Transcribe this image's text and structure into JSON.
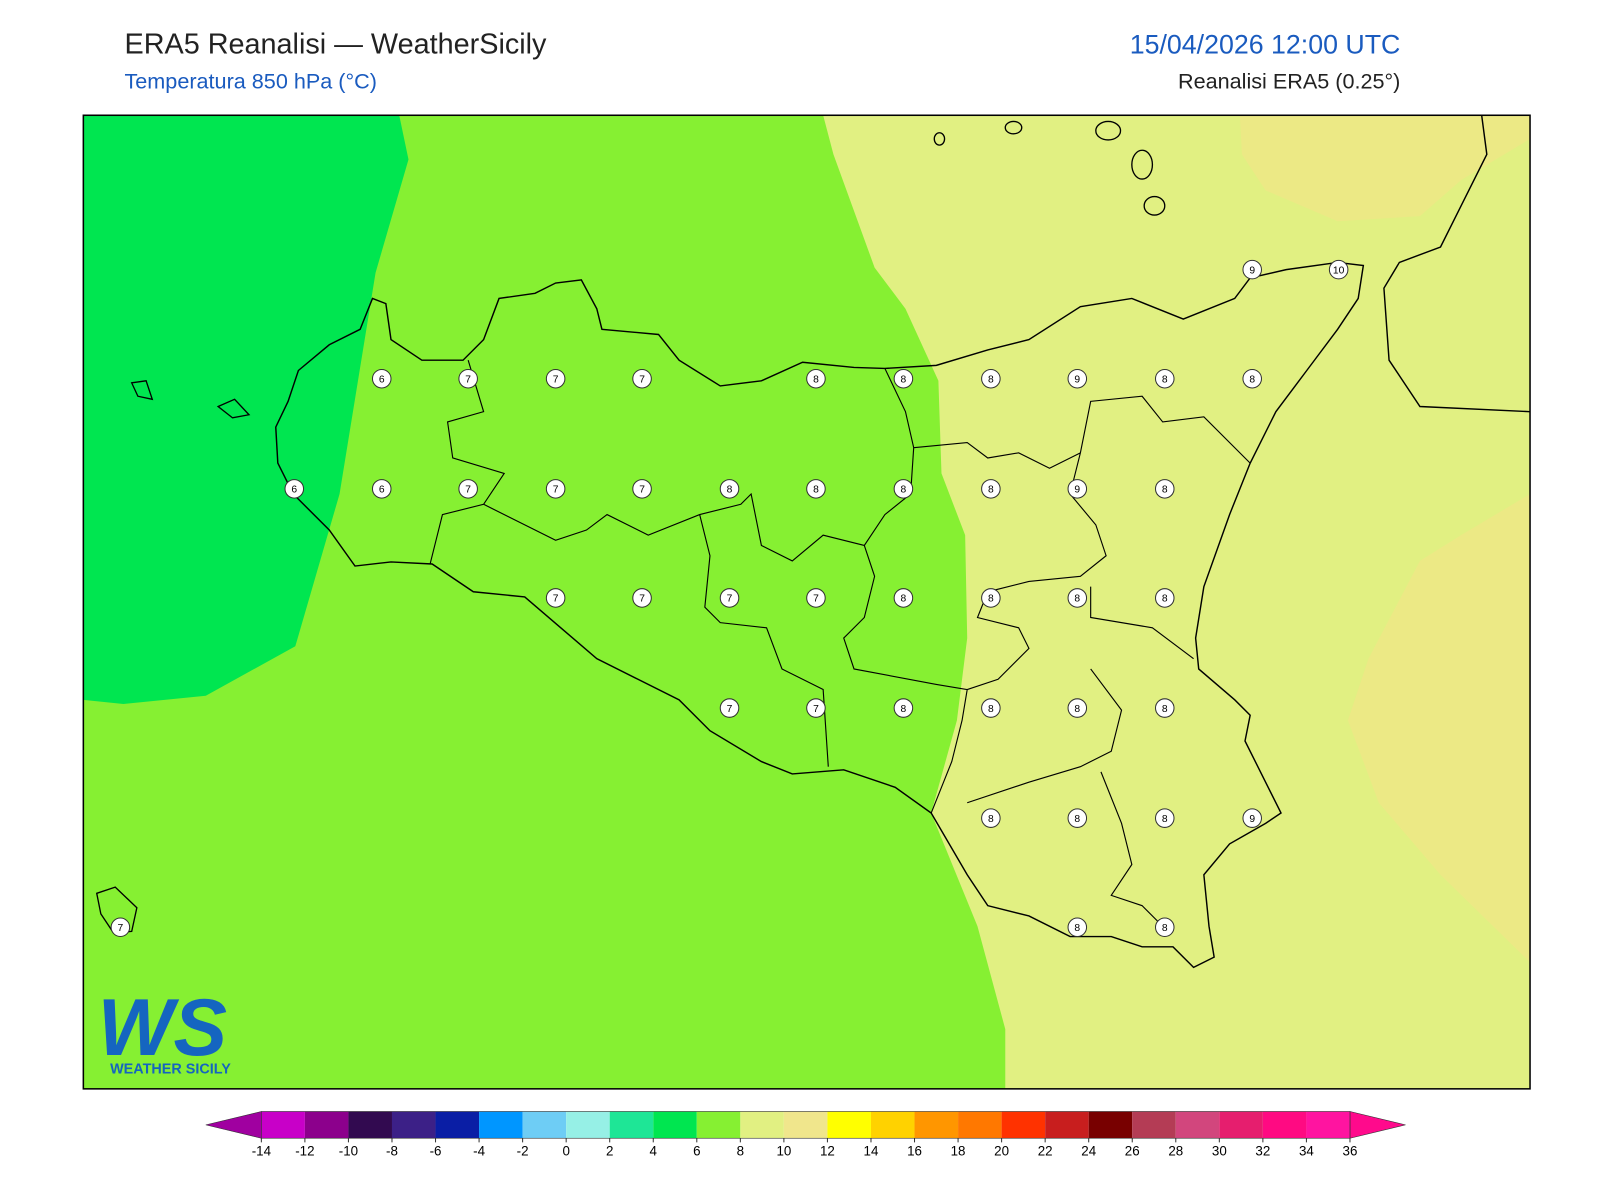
{
  "header": {
    "title": "ERA5 Reanalisi — WeatherSicily",
    "subtitle": "Temperatura 850 hPa (°C)",
    "datetime": "15/04/2026 12:00 UTC",
    "source": "Reanalisi ERA5 (0.25°)"
  },
  "map": {
    "points": [
      6,
      7,
      7,
      7,
      8,
      8,
      8,
      9,
      8,
      8,
      6,
      6,
      7,
      7,
      7,
      8,
      8,
      8,
      8,
      9,
      8,
      7,
      7,
      7,
      7,
      8,
      8,
      8,
      8,
      7,
      7,
      8,
      8,
      8,
      8,
      8,
      8,
      8,
      9,
      7,
      8,
      8,
      9,
      10
    ]
  },
  "colorbar": {
    "ticks": [
      -14,
      -12,
      -10,
      -8,
      -6,
      -4,
      -2,
      0,
      2,
      4,
      6,
      8,
      10,
      12,
      14,
      16,
      18,
      20,
      22,
      24,
      26,
      28,
      30,
      32,
      34,
      36
    ],
    "colors": [
      "#c800c8",
      "#8c008c",
      "#320a50",
      "#3c2087",
      "#0a1ea5",
      "#0096ff",
      "#6ecdf5",
      "#96f0e6",
      "#1ee696",
      "#00e650",
      "#86f032",
      "#e1f082",
      "#f0e68c",
      "#ffff00",
      "#ffd200",
      "#ff9600",
      "#ff7800",
      "#ff3200",
      "#c81e1e",
      "#780000",
      "#b43c55",
      "#d2467d",
      "#e61e6e",
      "#ff0a82",
      "#ff14a0"
    ],
    "under": "#a000a0",
    "over": "#ff0a8c"
  },
  "logo": {
    "mark": "WS",
    "text": "WEATHER SICILY"
  }
}
